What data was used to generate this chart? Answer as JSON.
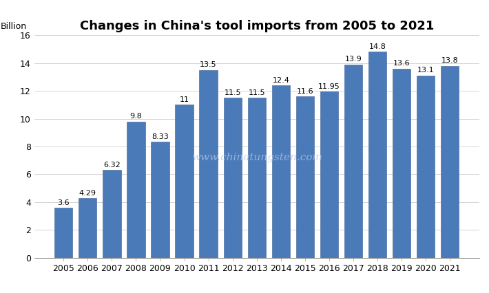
{
  "title": "Changes in China's tool imports from 2005 to 2021",
  "ylabel": "Billion",
  "years": [
    2005,
    2006,
    2007,
    2008,
    2009,
    2010,
    2011,
    2012,
    2013,
    2014,
    2015,
    2016,
    2017,
    2018,
    2019,
    2020,
    2021
  ],
  "values": [
    3.6,
    4.29,
    6.32,
    9.8,
    8.33,
    11,
    13.5,
    11.5,
    11.5,
    12.4,
    11.6,
    11.95,
    13.9,
    14.8,
    13.6,
    13.1,
    13.8
  ],
  "labels": [
    "3.6",
    "4.29",
    "6.32",
    "9.8",
    "8.33",
    "11",
    "13.5",
    "11.5",
    "11.5",
    "12.4",
    "11.6",
    "11.95",
    "13.9",
    "14.8",
    "13.6",
    "13.1",
    "13.8"
  ],
  "bar_color": "#4b7ab8",
  "bar_edge_color": "#3a6098",
  "ylim": [
    0,
    16
  ],
  "yticks": [
    0,
    2,
    4,
    6,
    8,
    10,
    12,
    14,
    16
  ],
  "background_color": "#ffffff",
  "watermark": "www.chinatungsten.com",
  "title_fontsize": 13,
  "label_fontsize": 8,
  "axis_fontsize": 9,
  "ylabel_fontsize": 9
}
